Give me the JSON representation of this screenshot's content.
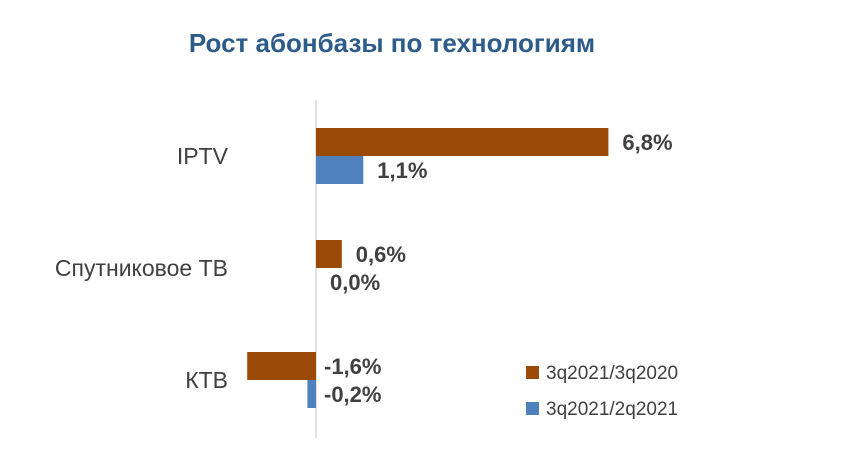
{
  "chart_data": {
    "type": "bar",
    "orientation": "horizontal",
    "title": "Рост абонбазы по технологиям",
    "categories": [
      "IPTV",
      "Спутниковое ТВ",
      "КТВ"
    ],
    "series": [
      {
        "name": "3q2021/3q2020",
        "values": [
          6.8,
          0.6,
          -1.6
        ],
        "labels": [
          "6,8%",
          "0,6%",
          "-1,6%"
        ],
        "color": "#9C4A07"
      },
      {
        "name": "3q2021/2q2021",
        "values": [
          1.1,
          0.0,
          -0.2
        ],
        "labels": [
          "1,1%",
          "0,0%",
          "-0,2%"
        ],
        "color": "#4F81BD"
      }
    ],
    "xlabel": "",
    "ylabel": "",
    "grid": false,
    "legend": "bottom-right",
    "title_color": "#2E5C8A"
  }
}
